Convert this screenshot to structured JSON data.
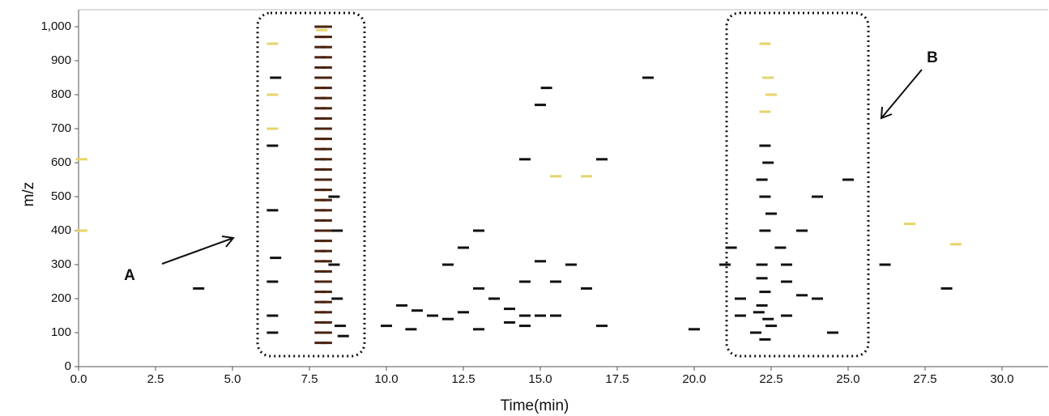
{
  "chart_data": {
    "type": "scatter",
    "xlabel": "Time(min)",
    "ylabel": "m/z",
    "annotations": [
      "A",
      "B"
    ],
    "xlim": [
      0,
      31.5
    ],
    "ylim": [
      0,
      1050
    ],
    "xticks": [
      {
        "value": 0,
        "label": "0.0"
      },
      2.5,
      {
        "value": 5,
        "label": "5.0"
      },
      7.5,
      {
        "value": 10,
        "label": "10.0"
      },
      12.5,
      {
        "value": 15,
        "label": "15.0"
      },
      17.5,
      {
        "value": 20,
        "label": "20.0"
      },
      22.5,
      {
        "value": 25,
        "label": "25.0"
      },
      27.5,
      {
        "value": 30,
        "label": "30.0"
      }
    ],
    "yticks": [
      0,
      100,
      200,
      300,
      400,
      500,
      600,
      700,
      800,
      900,
      {
        "value": 1000,
        "label": "1,000"
      }
    ],
    "grid": false,
    "series": [
      {
        "color": "#4a2410",
        "x": [
          7.85,
          7.85,
          7.85,
          7.85,
          7.85,
          7.85,
          7.85,
          7.85,
          7.85,
          7.85,
          7.85,
          7.85,
          7.85,
          7.85,
          7.85,
          7.85,
          7.85,
          7.85,
          7.85,
          7.85,
          7.85,
          7.85,
          7.85,
          7.85,
          7.85,
          7.85,
          7.85,
          7.85,
          7.85,
          7.85,
          7.85,
          7.85,
          8.05,
          8.05,
          8.05,
          8.05,
          8.05,
          8.05,
          8.05,
          8.05,
          8.05,
          8.05,
          8.05,
          8.05,
          8.05,
          8.05,
          8.05,
          8.05,
          8.05,
          8.05,
          8.05,
          8.05,
          8.05,
          8.05,
          8.05,
          8.05,
          8.05,
          8.05,
          8.05,
          8.05,
          8.05,
          8.05,
          8.05,
          8.05
        ],
        "values": [
          70,
          100,
          130,
          160,
          190,
          220,
          250,
          280,
          310,
          340,
          370,
          400,
          430,
          460,
          490,
          520,
          550,
          580,
          610,
          640,
          670,
          700,
          730,
          760,
          790,
          820,
          850,
          880,
          910,
          940,
          970,
          1000,
          70,
          100,
          130,
          160,
          190,
          220,
          250,
          280,
          310,
          340,
          370,
          400,
          430,
          460,
          490,
          520,
          550,
          580,
          610,
          640,
          670,
          700,
          730,
          760,
          790,
          820,
          850,
          880,
          910,
          940,
          970,
          1000
        ]
      },
      {
        "color": "#111111",
        "x": [
          6.3,
          6.3,
          6.3,
          6.4,
          6.3,
          6.3,
          6.4,
          8.6,
          8.5,
          8.4,
          8.3,
          8.4,
          8.3,
          10.5,
          11,
          11.5,
          12,
          10,
          10.8,
          12.5,
          13,
          13.5,
          14,
          14.5,
          15,
          15.5,
          14,
          14.5,
          13,
          15.2,
          15,
          15.5,
          16,
          15,
          14.5,
          12,
          12.5,
          13,
          16.5,
          17,
          14.5,
          17,
          20,
          21.5,
          21.2,
          21,
          21.5,
          22,
          22.3,
          22.5,
          23,
          23.5,
          24,
          24.5,
          23,
          23.5,
          24,
          25,
          23,
          22.8,
          22.5,
          22.2,
          22.3,
          26.2,
          3.9,
          28.2,
          18.5,
          22.2,
          22.3,
          22.2,
          22.1,
          22.4,
          22.2,
          22.3,
          22.3,
          22.4
        ],
        "values": [
          100,
          150,
          250,
          320,
          460,
          650,
          850,
          90,
          120,
          200,
          300,
          400,
          500,
          180,
          165,
          150,
          140,
          120,
          110,
          160,
          230,
          200,
          170,
          150,
          150,
          150,
          130,
          120,
          110,
          820,
          770,
          250,
          300,
          310,
          250,
          300,
          350,
          400,
          230,
          120,
          610,
          610,
          110,
          150,
          350,
          300,
          200,
          100,
          80,
          120,
          150,
          210,
          200,
          100,
          300,
          400,
          500,
          550,
          250,
          350,
          450,
          550,
          650,
          300,
          230,
          230,
          850,
          180,
          220,
          260,
          160,
          140,
          300,
          400,
          500,
          600
        ]
      },
      {
        "color": "#e6d46a",
        "x": [
          6.3,
          6.3,
          6.3,
          22.3,
          22.4,
          22.3,
          22.5,
          7.9,
          15.5,
          16.5,
          0.1,
          0.1,
          28.5,
          27
        ],
        "values": [
          950,
          800,
          700,
          950,
          850,
          750,
          800,
          990,
          560,
          560,
          610,
          400,
          360,
          420
        ]
      }
    ]
  }
}
